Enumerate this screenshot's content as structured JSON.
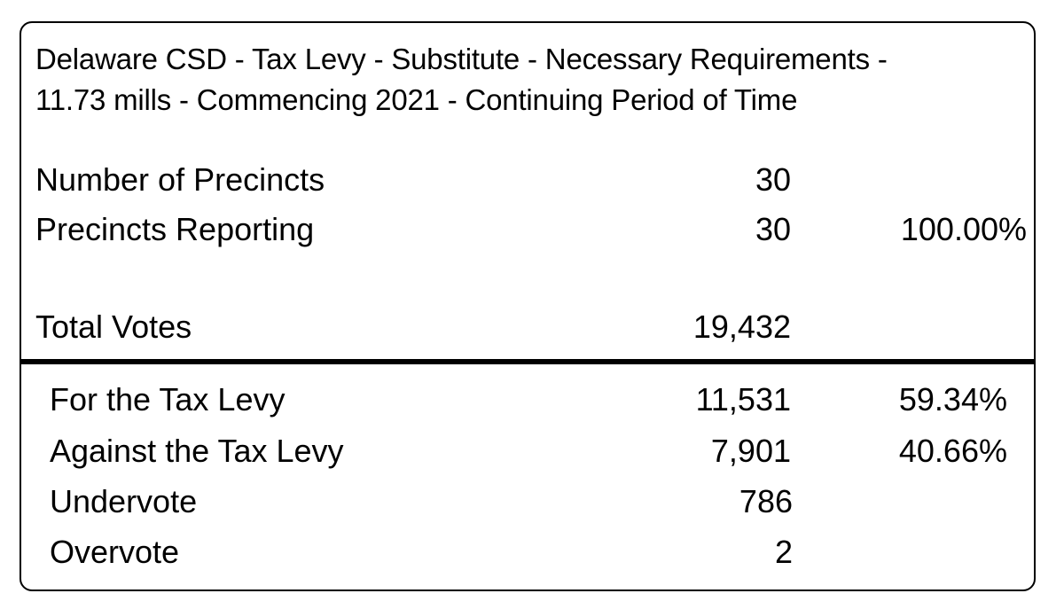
{
  "contest": {
    "title_line1": "Delaware CSD - Tax Levy - Substitute - Necessary Requirements -",
    "title_line2": "11.73 mills - Commencing 2021 - Continuing Period of Time"
  },
  "summary": {
    "precincts": {
      "label": "Number of Precincts",
      "count": "30"
    },
    "reporting": {
      "label": "Precincts Reporting",
      "count": "30",
      "percent": "100.00%"
    },
    "total_votes": {
      "label": "Total Votes",
      "count": "19,432"
    }
  },
  "results": [
    {
      "label": "For the Tax Levy",
      "votes": "11,531",
      "percent": "59.34%"
    },
    {
      "label": "Against the Tax Levy",
      "votes": "7,901",
      "percent": "40.66%"
    },
    {
      "label": "Undervote",
      "votes": "786",
      "percent": ""
    },
    {
      "label": "Overvote",
      "votes": "2",
      "percent": ""
    }
  ]
}
